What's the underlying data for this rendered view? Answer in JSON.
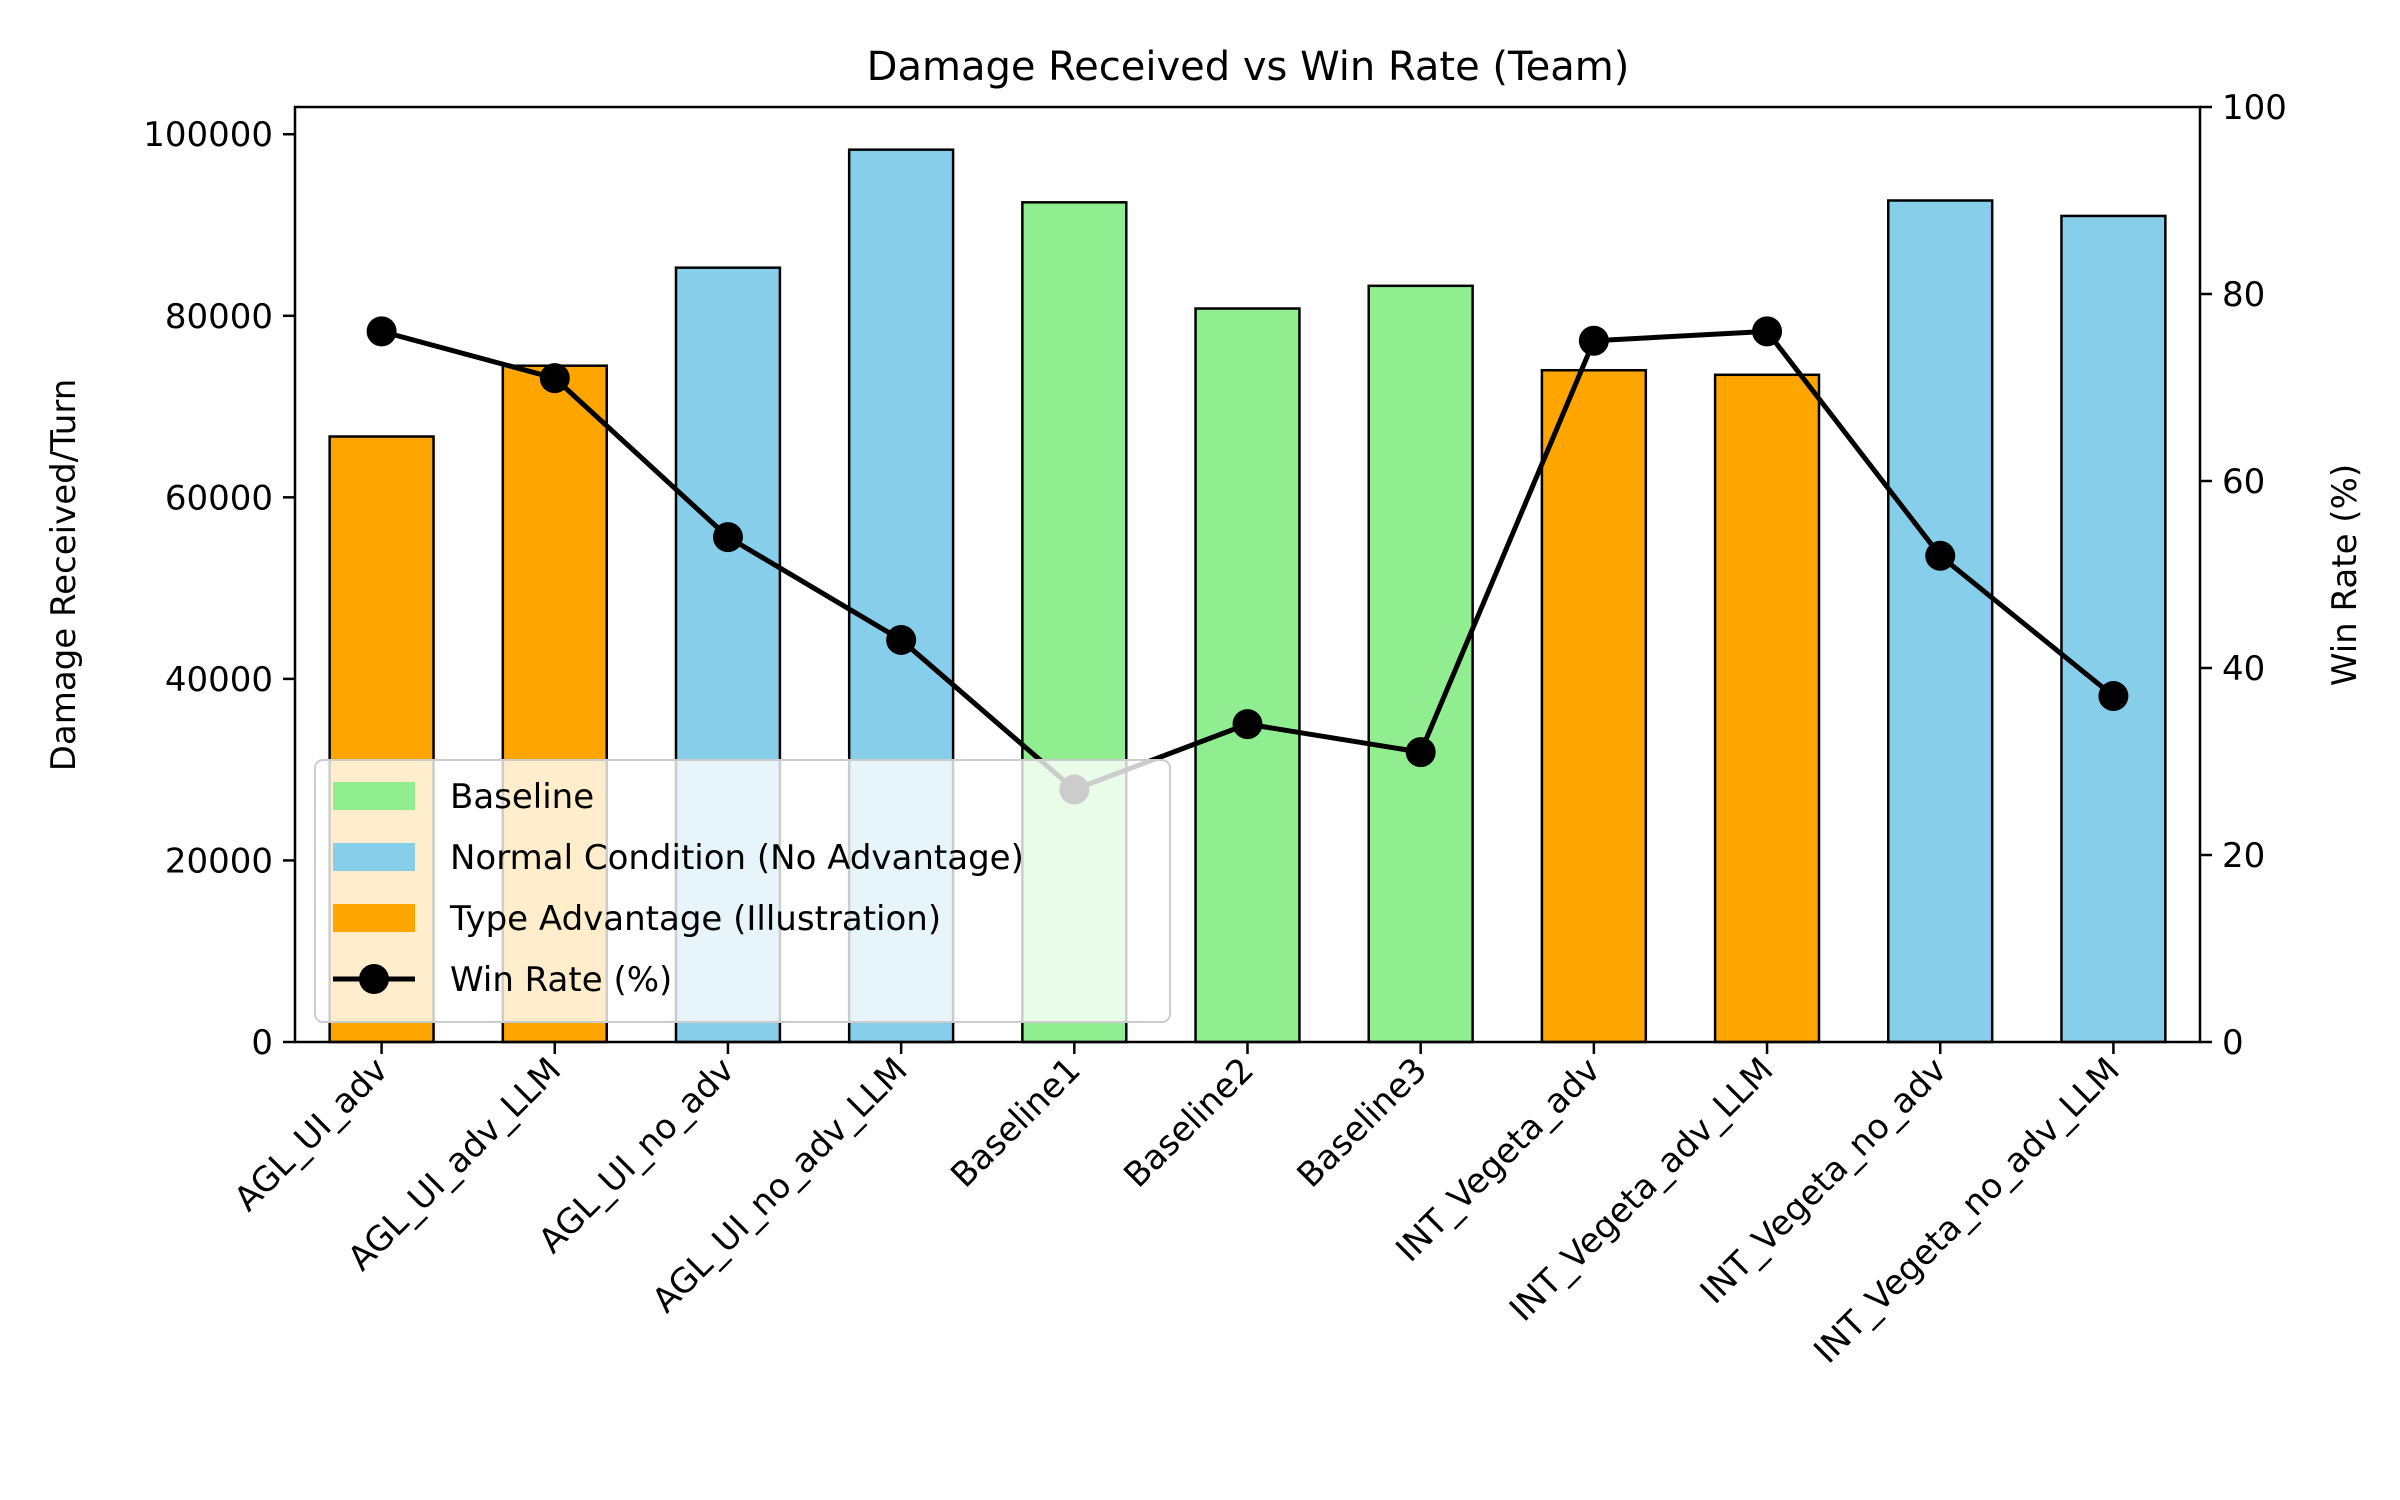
{
  "chart_data": {
    "type": "bar",
    "title": "Damage Received vs Win Rate (Team)",
    "xlabel": "",
    "ylabel": "Damage Received/Turn",
    "y2label": "Win Rate (%)",
    "ylim": [
      0,
      103000
    ],
    "y2lim": [
      0,
      100
    ],
    "yticks": [
      "0",
      "20000",
      "40000",
      "60000",
      "80000",
      "100000"
    ],
    "y2ticks": [
      "0",
      "20",
      "40",
      "60",
      "80",
      "100"
    ],
    "categories": [
      "AGL_UI_adv",
      "AGL_UI_adv_LLM",
      "AGL_UI_no_adv",
      "AGL_UI_no_adv_LLM",
      "Baseline1",
      "Baseline2",
      "Baseline3",
      "INT_Vegeta_adv",
      "INT_Vegeta_adv_LLM",
      "INT_Vegeta_no_adv",
      "INT_Vegeta_no_adv_LLM"
    ],
    "bar_groups": [
      "advantage",
      "advantage",
      "normal",
      "normal",
      "baseline",
      "baseline",
      "baseline",
      "advantage",
      "advantage",
      "normal",
      "normal"
    ],
    "damage_values": [
      66700,
      74500,
      85300,
      98300,
      92500,
      80800,
      83300,
      74000,
      73500,
      92700,
      91000
    ],
    "win_rate": [
      76,
      71,
      54,
      43,
      27,
      34,
      31,
      75,
      76,
      52,
      37
    ],
    "colors": {
      "baseline": "#90ee90",
      "normal": "#87ceeb",
      "advantage": "#ffa500",
      "line": "#000000"
    },
    "legend": {
      "placement": "lower-left",
      "items": [
        {
          "key": "baseline",
          "label": "Baseline"
        },
        {
          "key": "normal",
          "label": "Normal Condition (No Advantage)"
        },
        {
          "key": "advantage",
          "label": "Type Advantage (Illustration)"
        },
        {
          "key": "line",
          "label": "Win Rate (%)"
        }
      ]
    }
  }
}
